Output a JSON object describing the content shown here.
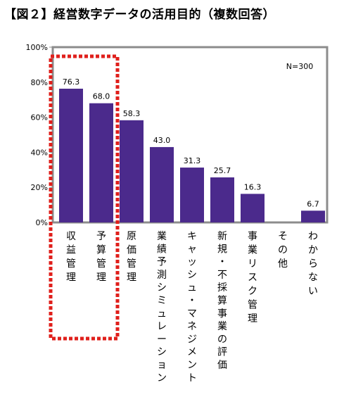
{
  "title": "【図２】経営数字データの活用目的（複数回答）",
  "note": "N=300",
  "colors": {
    "bar": "#4b2a8c",
    "frame": "#8c8c8c",
    "highlight": "#e0201c"
  },
  "chart_data": {
    "type": "bar",
    "title": "【図２】経営数字データの活用目的（複数回答）",
    "categories": [
      "収益管理",
      "予算管理",
      "原価管理",
      "業績予測シミュレーション",
      "キャッシュ・マネジメント",
      "新規・不採算事業の評価",
      "事業リスク管理",
      "その他",
      "わからない"
    ],
    "values": [
      76.3,
      68.0,
      58.3,
      43.0,
      31.3,
      25.7,
      16.3,
      0.0,
      6.7
    ],
    "value_labels": [
      "76.3",
      "68.0",
      "58.3",
      "43.0",
      "31.3",
      "25.7",
      "16.3",
      "",
      "6.7"
    ],
    "ylim": [
      0,
      100
    ],
    "yticks": [
      "0%",
      "20%",
      "40%",
      "60%",
      "80%",
      "100%"
    ],
    "grid": false,
    "highlighted_categories": [
      "収益管理",
      "予算管理"
    ]
  }
}
